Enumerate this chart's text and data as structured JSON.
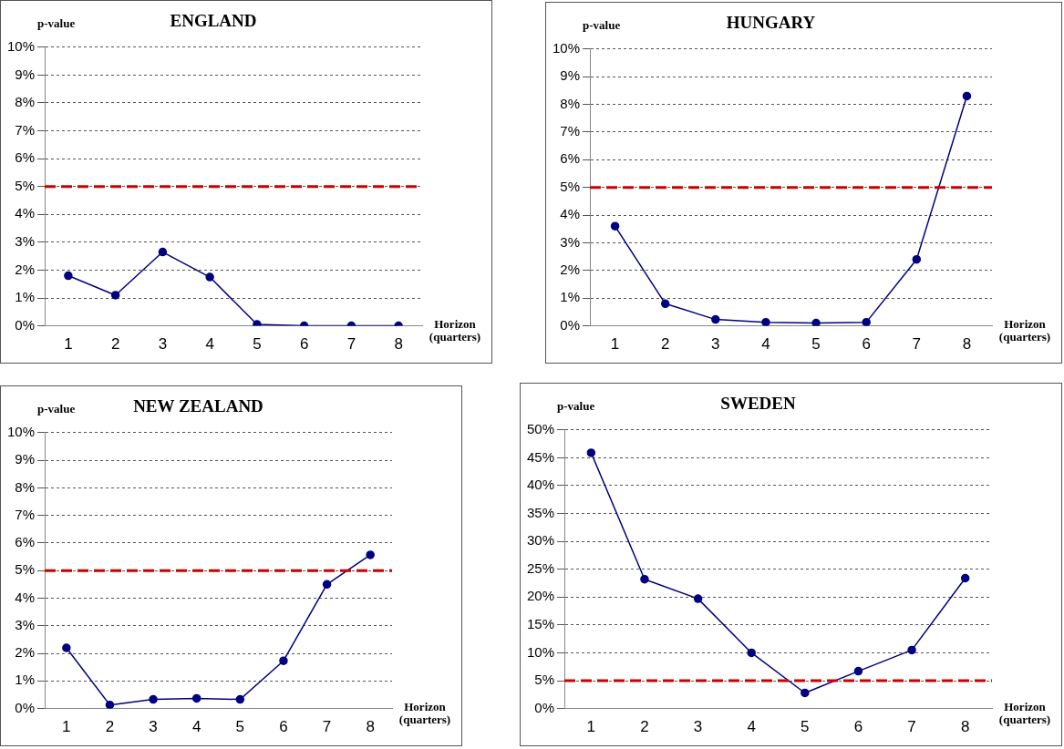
{
  "chart_data": [
    {
      "type": "line",
      "title": "ENGLAND",
      "ylabel": "p-value",
      "xlabel": "Horizon (quarters)",
      "categories": [
        "1",
        "2",
        "3",
        "4",
        "5",
        "6",
        "7",
        "8"
      ],
      "series": [
        {
          "color": "#000080",
          "values": [
            1.8,
            1.1,
            2.65,
            1.75,
            0.05,
            0,
            0,
            0
          ]
        }
      ],
      "ylim": [
        0,
        10
      ],
      "yticks": [
        {
          "value": 0,
          "label": "0%"
        },
        {
          "value": 1,
          "label": "1%"
        },
        {
          "value": 2,
          "label": "2%"
        },
        {
          "value": 3,
          "label": "3%"
        },
        {
          "value": 4,
          "label": "4%"
        },
        {
          "value": 5,
          "label": "5%"
        },
        {
          "value": 6,
          "label": "6%"
        },
        {
          "value": 7,
          "label": "7%"
        },
        {
          "value": 8,
          "label": "8%"
        },
        {
          "value": 9,
          "label": "9%"
        },
        {
          "value": 10,
          "label": "10%"
        }
      ],
      "grid": "y",
      "legend": false,
      "marker": "circle",
      "line_style": "solid",
      "ref_lines": [
        {
          "axis": "y",
          "value": 5,
          "color": "#cc0000",
          "line_style": "dashed"
        }
      ]
    },
    {
      "type": "line",
      "title": "HUNGARY",
      "ylabel": "p-value",
      "xlabel": "Horizon (quarters)",
      "categories": [
        "1",
        "2",
        "3",
        "4",
        "5",
        "6",
        "7",
        "8"
      ],
      "series": [
        {
          "color": "#000080",
          "values": [
            3.6,
            0.8,
            0.23,
            0.13,
            0.1,
            0.13,
            2.4,
            8.3
          ]
        }
      ],
      "ylim": [
        0,
        10
      ],
      "yticks": [
        {
          "value": 0,
          "label": "0%"
        },
        {
          "value": 1,
          "label": "1%"
        },
        {
          "value": 2,
          "label": "2%"
        },
        {
          "value": 3,
          "label": "3%"
        },
        {
          "value": 4,
          "label": "4%"
        },
        {
          "value": 5,
          "label": "5%"
        },
        {
          "value": 6,
          "label": "6%"
        },
        {
          "value": 7,
          "label": "7%"
        },
        {
          "value": 8,
          "label": "8%"
        },
        {
          "value": 9,
          "label": "9%"
        },
        {
          "value": 10,
          "label": "10%"
        }
      ],
      "grid": "y",
      "legend": false,
      "marker": "circle",
      "line_style": "solid",
      "ref_lines": [
        {
          "axis": "y",
          "value": 5,
          "color": "#cc0000",
          "line_style": "dashed"
        }
      ]
    },
    {
      "type": "line",
      "title": "NEW ZEALAND",
      "ylabel": "p-value",
      "xlabel": "Horizon (quarters)",
      "categories": [
        "1",
        "2",
        "3",
        "4",
        "5",
        "6",
        "7",
        "8"
      ],
      "series": [
        {
          "color": "#000080",
          "values": [
            2.2,
            0.13,
            0.33,
            0.37,
            0.33,
            1.73,
            4.5,
            5.57
          ]
        }
      ],
      "ylim": [
        0,
        10
      ],
      "yticks": [
        {
          "value": 0,
          "label": "0%"
        },
        {
          "value": 1,
          "label": "1%"
        },
        {
          "value": 2,
          "label": "2%"
        },
        {
          "value": 3,
          "label": "3%"
        },
        {
          "value": 4,
          "label": "4%"
        },
        {
          "value": 5,
          "label": "5%"
        },
        {
          "value": 6,
          "label": "6%"
        },
        {
          "value": 7,
          "label": "7%"
        },
        {
          "value": 8,
          "label": "8%"
        },
        {
          "value": 9,
          "label": "9%"
        },
        {
          "value": 10,
          "label": "10%"
        }
      ],
      "grid": "y",
      "legend": false,
      "marker": "circle",
      "line_style": "solid",
      "ref_lines": [
        {
          "axis": "y",
          "value": 5,
          "color": "#cc0000",
          "line_style": "dashed"
        }
      ]
    },
    {
      "type": "line",
      "title": "SWEDEN",
      "ylabel": "p-value",
      "xlabel": "Horizon (quarters)",
      "categories": [
        "1",
        "2",
        "3",
        "4",
        "5",
        "6",
        "7",
        "8"
      ],
      "series": [
        {
          "color": "#000080",
          "values": [
            45.9,
            23.2,
            19.7,
            10,
            2.8,
            6.7,
            10.5,
            23.4
          ]
        }
      ],
      "ylim": [
        0,
        50
      ],
      "yticks": [
        {
          "value": 0,
          "label": "0%"
        },
        {
          "value": 5,
          "label": "5%"
        },
        {
          "value": 10,
          "label": "10%"
        },
        {
          "value": 15,
          "label": "15%"
        },
        {
          "value": 20,
          "label": "20%"
        },
        {
          "value": 25,
          "label": "25%"
        },
        {
          "value": 30,
          "label": "30%"
        },
        {
          "value": 35,
          "label": "35%"
        },
        {
          "value": 40,
          "label": "40%"
        },
        {
          "value": 45,
          "label": "45%"
        },
        {
          "value": 50,
          "label": "50%"
        }
      ],
      "grid": "y",
      "legend": false,
      "marker": "circle",
      "line_style": "solid",
      "ref_lines": [
        {
          "axis": "y",
          "value": 5,
          "color": "#cc0000",
          "line_style": "dashed"
        }
      ]
    }
  ]
}
